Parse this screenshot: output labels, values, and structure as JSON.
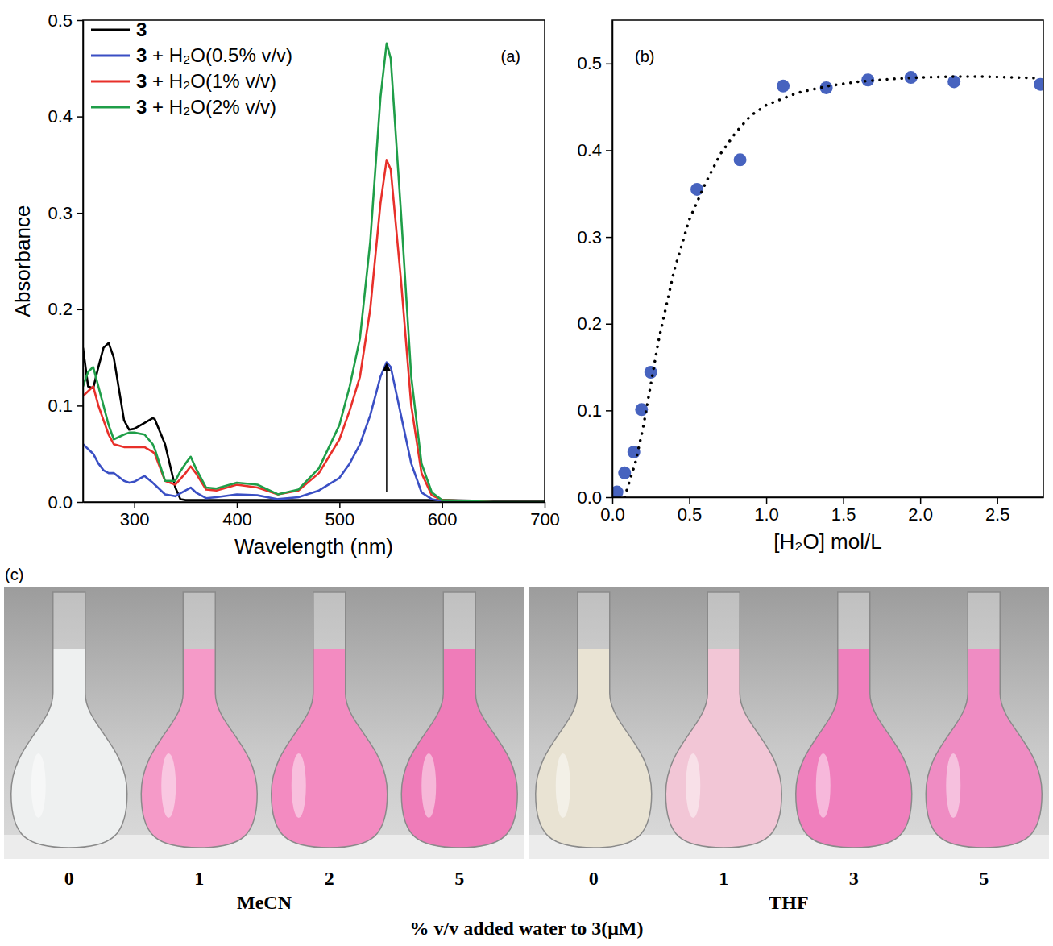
{
  "chart_data": [
    {
      "type": "line",
      "title": "(a)",
      "x_label": "Wavelength (nm)",
      "y_label": "Absorbance",
      "legend": "upper left",
      "x": [
        250,
        255,
        260,
        265,
        270,
        275,
        280,
        290,
        295,
        300,
        310,
        318,
        320,
        330,
        340,
        345,
        350,
        355,
        360,
        370,
        380,
        400,
        420,
        440,
        460,
        480,
        500,
        510,
        520,
        530,
        540,
        546,
        550,
        560,
        570,
        580,
        590,
        600,
        650,
        700
      ],
      "xlim": [
        250,
        700
      ],
      "xticks": [
        300,
        400,
        500,
        600,
        700
      ],
      "ylim": [
        0,
        0.5
      ],
      "yticks": [
        {
          "value": 0,
          "label": "0.0"
        },
        0.1,
        0.2,
        0.3,
        0.4,
        0.5
      ],
      "series": [
        {
          "name": "3",
          "color": "#000000",
          "values": [
            0.16,
            0.12,
            0.118,
            0.14,
            0.16,
            0.165,
            0.15,
            0.085,
            0.075,
            0.076,
            0.082,
            0.087,
            0.086,
            0.06,
            0.015,
            0.003,
            0.002,
            0.002,
            0.002,
            0.002,
            0.002,
            0.002,
            0.002,
            0.002,
            0.002,
            0.002,
            0.002,
            0.002,
            0.002,
            0.002,
            0.002,
            0.002,
            0.002,
            0.002,
            0.002,
            0.002,
            0.002,
            0.002,
            0.001,
            0.001
          ]
        },
        {
          "name": "3 + H₂O(0.5% v/v)",
          "color": "#3a4fc4",
          "values": [
            0.06,
            0.055,
            0.05,
            0.04,
            0.033,
            0.03,
            0.03,
            0.022,
            0.02,
            0.021,
            0.027,
            0.02,
            0.018,
            0.008,
            0.006,
            0.009,
            0.012,
            0.015,
            0.01,
            0.004,
            0.005,
            0.008,
            0.007,
            0.003,
            0.005,
            0.012,
            0.025,
            0.04,
            0.06,
            0.09,
            0.13,
            0.145,
            0.14,
            0.09,
            0.04,
            0.01,
            0.003,
            0.001,
            0,
            0
          ]
        },
        {
          "name": "3 + H₂O(1% v/v)",
          "color": "#e8302a",
          "values": [
            0.11,
            0.115,
            0.12,
            0.1,
            0.085,
            0.07,
            0.06,
            0.057,
            0.057,
            0.057,
            0.057,
            0.052,
            0.05,
            0.022,
            0.018,
            0.024,
            0.03,
            0.037,
            0.03,
            0.013,
            0.012,
            0.018,
            0.015,
            0.008,
            0.012,
            0.03,
            0.065,
            0.095,
            0.13,
            0.2,
            0.31,
            0.355,
            0.345,
            0.23,
            0.1,
            0.03,
            0.007,
            0.002,
            0,
            0
          ]
        },
        {
          "name": "3 + H₂O(2% v/v)",
          "color": "#1f9e48",
          "values": [
            0.12,
            0.135,
            0.14,
            0.12,
            0.1,
            0.08,
            0.065,
            0.07,
            0.072,
            0.072,
            0.07,
            0.06,
            0.055,
            0.022,
            0.022,
            0.032,
            0.04,
            0.047,
            0.035,
            0.015,
            0.014,
            0.02,
            0.018,
            0.008,
            0.013,
            0.035,
            0.08,
            0.12,
            0.17,
            0.27,
            0.42,
            0.476,
            0.46,
            0.3,
            0.13,
            0.04,
            0.01,
            0.002,
            0,
            0
          ]
        }
      ]
    },
    {
      "type": "scatter",
      "title": "(b)",
      "x_label": "[H₂O] mol/L",
      "xlim": [
        0,
        2.8
      ],
      "xticks": [
        {
          "value": 0,
          "label": "0.0"
        },
        0.5,
        {
          "value": 1,
          "label": "1.0"
        },
        1.5,
        {
          "value": 2,
          "label": "2.0"
        },
        2.5
      ],
      "ylim": [
        0,
        0.55
      ],
      "yticks": [
        {
          "value": 0,
          "label": "0.0"
        },
        0.1,
        0.2,
        0.3,
        0.4,
        0.5
      ],
      "series": [
        {
          "type": "scatter",
          "marker": "circle",
          "color": "#4763bf",
          "x": [
            0,
            0.03,
            0.08,
            0.14,
            0.19,
            0.25,
            0.55,
            0.83,
            1.11,
            1.39,
            1.66,
            1.94,
            2.22,
            2.78
          ],
          "values": [
            0.003,
            0.006,
            0.028,
            0.052,
            0.101,
            0.144,
            0.355,
            0.389,
            0.474,
            0.472,
            0.481,
            0.484,
            0.479,
            0.476
          ]
        },
        {
          "type": "line",
          "line_style": "dotted",
          "color": "#000000",
          "x": [
            0.08,
            0.15,
            0.2,
            0.3,
            0.4,
            0.5,
            0.6,
            0.7,
            0.8,
            0.9,
            1.0,
            1.2,
            1.4,
            1.6,
            1.8,
            2.0,
            2.2,
            2.4,
            2.6,
            2.78
          ],
          "values": [
            0,
            0.04,
            0.08,
            0.18,
            0.26,
            0.32,
            0.36,
            0.395,
            0.42,
            0.44,
            0.452,
            0.466,
            0.474,
            0.479,
            0.482,
            0.484,
            0.485,
            0.485,
            0.484,
            0.483
          ]
        }
      ]
    }
  ],
  "panel_c": {
    "label": "(c)",
    "caption": "% v/v added water to 3(μM)",
    "groups": [
      {
        "solvent": "MeCN",
        "samples": [
          {
            "label": 0,
            "color": "#eef0f0"
          },
          {
            "label": 1,
            "color": "#f59ac8"
          },
          {
            "label": 2,
            "color": "#f38bc1"
          },
          {
            "label": 5,
            "color": "#ef7cb9"
          }
        ]
      },
      {
        "solvent": "THF",
        "samples": [
          {
            "label": 0,
            "color": "#e9e3d3"
          },
          {
            "label": 1,
            "color": "#f2c6d6"
          },
          {
            "label": 3,
            "color": "#f07fbd"
          },
          {
            "label": 5,
            "color": "#ef8cc3"
          }
        ]
      }
    ]
  }
}
